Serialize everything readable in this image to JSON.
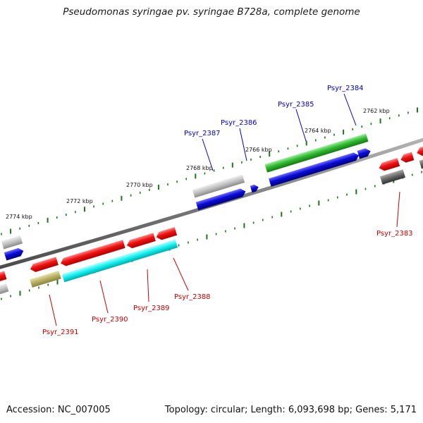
{
  "title": "Pseudomonas syringae pv. syringae B728a, complete genome",
  "footer": {
    "accession": "Accession: NC_007005",
    "topology": "Topology: circular; Length: 6,093,698 bp; Genes: 5,171"
  },
  "scale_labels": [
    "2762 kbp",
    "2764 kbp",
    "2766 kbp",
    "2768 kbp",
    "2770 kbp",
    "2772 kbp",
    "2774 kbp"
  ],
  "genes_forward": [
    "Psyr_2384",
    "Psyr_2385",
    "Psyr_2386",
    "Psyr_2387"
  ],
  "genes_reverse": [
    "Psyr_2383",
    "Psyr_2388",
    "Psyr_2389",
    "Psyr_2390",
    "Psyr_2391"
  ],
  "colors": {
    "forward_label": "#0000cc",
    "reverse_label": "#cc0000",
    "backbone": "#7a7a7a",
    "ticks": "#1a7a1a",
    "red": "#ee1111",
    "blue": "#0a0ad8",
    "green": "#33bb33",
    "cyan": "#11eeee",
    "olive": "#b8b060",
    "gray": "#c0c0c0",
    "dark_gray": "#666666"
  }
}
